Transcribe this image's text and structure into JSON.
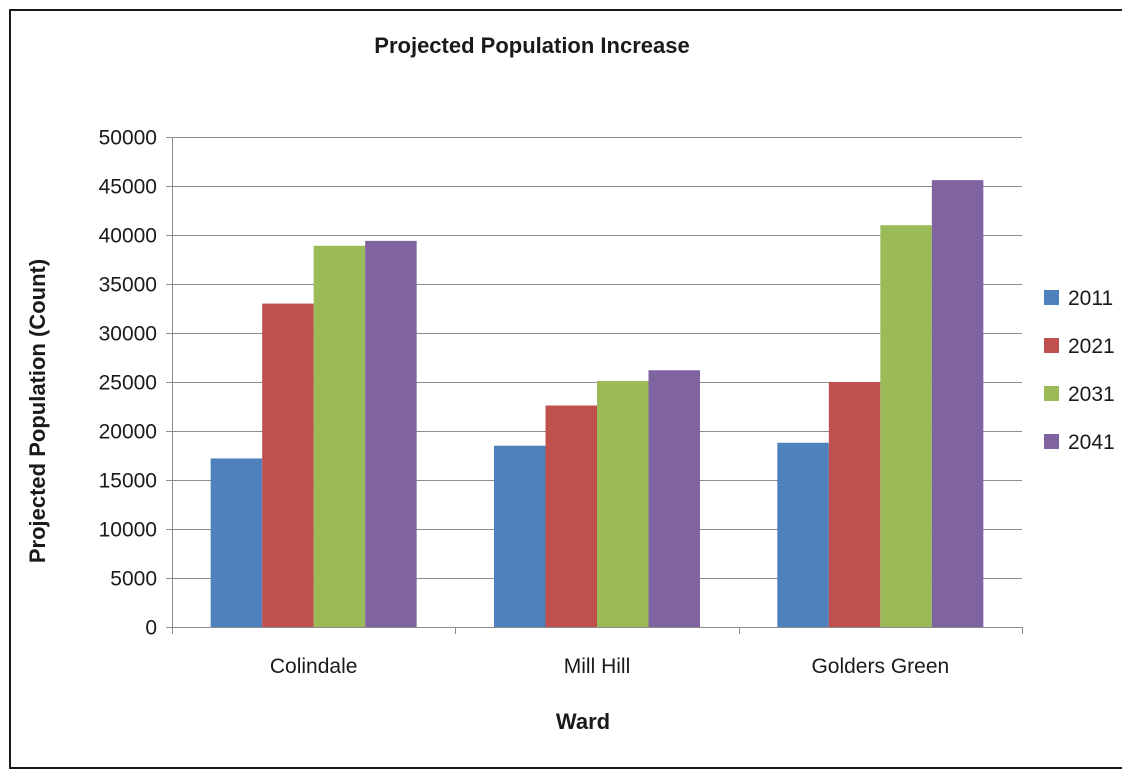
{
  "chart_data": {
    "type": "bar",
    "title": "Projected Population Increase",
    "xlabel": "Ward",
    "ylabel": "Projected Population (Count)",
    "categories": [
      "Colindale",
      "Mill Hill",
      "Golders Green"
    ],
    "ylim": [
      0,
      50000
    ],
    "yticks": [
      "0",
      "5000",
      "10000",
      "15000",
      "20000",
      "25000",
      "30000",
      "35000",
      "40000",
      "45000",
      "50000"
    ],
    "grid": true,
    "legend_position": "right",
    "series": [
      {
        "name": "2011",
        "color": "#4F81BD",
        "values": [
          17200,
          18500,
          18800
        ]
      },
      {
        "name": "2021",
        "color": "#C0504D",
        "values": [
          33000,
          22600,
          25000
        ]
      },
      {
        "name": "2031",
        "color": "#9BBB59",
        "values": [
          38900,
          25100,
          41000
        ]
      },
      {
        "name": "2041",
        "color": "#8064A2",
        "values": [
          39400,
          26200,
          45600
        ]
      }
    ]
  }
}
